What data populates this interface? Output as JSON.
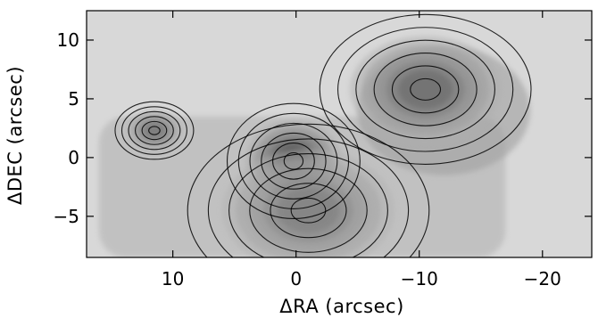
{
  "chart_data": {
    "type": "heatmap",
    "title": "",
    "xlabel": "ΔRA (arcsec)",
    "ylabel": "ΔDEC (arcsec)",
    "xlim": [
      17,
      -24
    ],
    "ylim": [
      -8.5,
      12.5
    ],
    "x_ticks": [
      {
        "value": 10,
        "label": "10"
      },
      {
        "value": 0,
        "label": "0"
      },
      {
        "value": -10,
        "label": "−10"
      },
      {
        "value": -20,
        "label": "−20"
      }
    ],
    "y_ticks": [
      {
        "value": 10,
        "label": "10"
      },
      {
        "value": 5,
        "label": "5"
      },
      {
        "value": 0,
        "label": "0"
      },
      {
        "value": -5,
        "label": "−5"
      }
    ],
    "colormap": "grayscale (dark = high intensity)",
    "contours": "black contour lines over grayscale image",
    "components": [
      {
        "x": 0.2,
        "y": -0.3,
        "peak": 1.0,
        "width_x": 2.2,
        "width_y": 2.0
      },
      {
        "x": 11.5,
        "y": 2.3,
        "peak": 0.62,
        "width_x": 1.3,
        "width_y": 1.0
      },
      {
        "x": -10.5,
        "y": 5.8,
        "peak": 0.72,
        "width_x": 3.5,
        "width_y": 2.6
      },
      {
        "x": -1.0,
        "y": -4.5,
        "peak": 0.55,
        "width_x": 4.0,
        "width_y": 3.0
      }
    ],
    "grid": false
  }
}
